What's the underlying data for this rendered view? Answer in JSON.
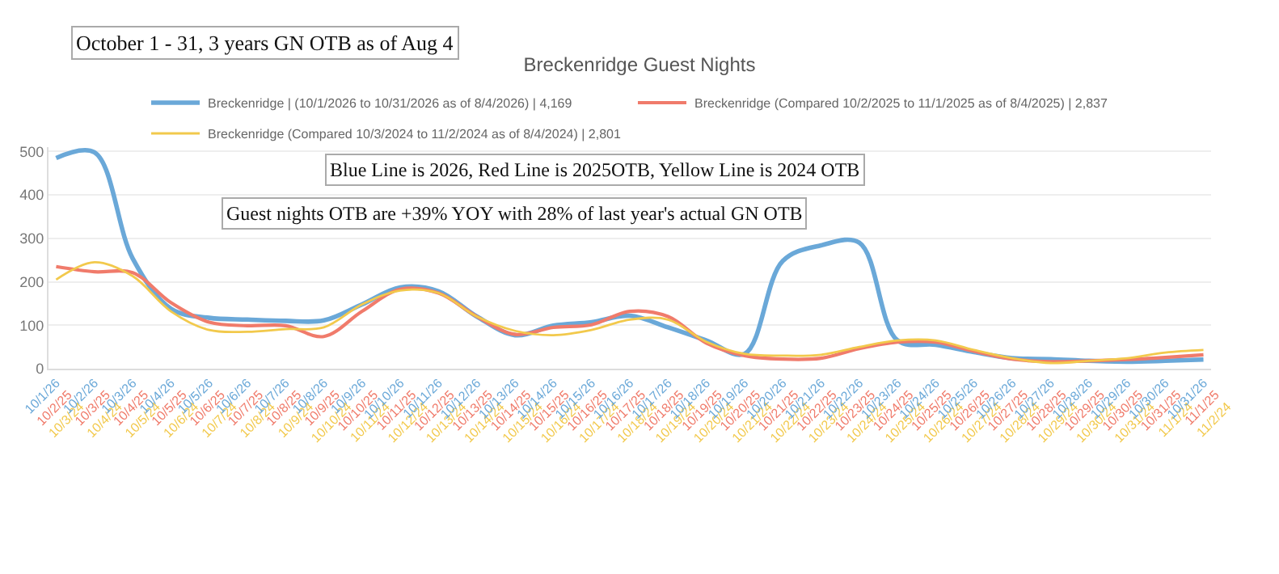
{
  "chart_data": {
    "type": "line",
    "title": "Breckenridge Guest Nights",
    "annotations": [
      "October 1 - 31, 3 years GN OTB as of Aug 4",
      "Blue Line is 2026, Red Line is 2025OTB, Yellow Line is 2024 OTB",
      "Guest nights OTB are +39% YOY with 28% of last year's actual GN OTB"
    ],
    "categories": [
      "10/1/26\n10/2/25\n10/3/24",
      "10/2/26\n10/3/25\n10/4/24",
      "10/3/26\n10/4/25\n10/5/24",
      "10/4/26\n10/5/25\n10/6/24",
      "10/5/26\n10/6/25\n10/7/24",
      "10/6/26\n10/7/25\n10/8/24",
      "10/7/26\n10/8/25\n10/9/24",
      "10/8/26\n10/9/25\n10/10/24",
      "10/9/26\n10/10/25\n10/11/24",
      "10/10/26\n10/11/25\n10/12/24",
      "10/11/26\n10/12/25\n10/13/24",
      "10/12/26\n10/13/25\n10/14/24",
      "10/13/26\n10/14/25\n10/15/24",
      "10/14/26\n10/15/25\n10/16/24",
      "10/15/26\n10/16/25\n10/17/24",
      "10/16/26\n10/17/25\n10/18/24",
      "10/17/26\n10/18/25\n10/19/24",
      "10/18/26\n10/19/25\n10/20/24",
      "10/19/26\n10/20/25\n10/21/24",
      "10/20/26\n10/21/25\n10/22/24",
      "10/21/26\n10/22/25\n10/23/24",
      "10/22/26\n10/23/25\n10/24/24",
      "10/23/26\n10/24/25\n10/25/24",
      "10/24/26\n10/25/25\n10/26/24",
      "10/25/26\n10/26/25\n10/27/24",
      "10/26/26\n10/27/25\n10/28/24",
      "10/27/26\n10/28/25\n10/29/24",
      "10/28/26\n10/29/25\n10/30/24",
      "10/29/26\n10/30/25\n10/31/24",
      "10/30/26\n10/31/25\n11/1/24",
      "10/31/26\n11/1/25\n11/2/24"
    ],
    "series": [
      {
        "name": "Breckenridge | (10/1/2026 to 10/31/2026 as of 8/4/2026) | 4,169",
        "color": "#6aa8d8",
        "values": [
          485,
          498,
          254,
          138,
          117,
          113,
          110,
          111,
          148,
          187,
          178,
          120,
          77,
          99,
          107,
          122,
          95,
          65,
          34,
          248,
          284,
          290,
          65,
          55,
          38,
          24,
          22,
          18,
          16,
          18,
          21
        ]
      },
      {
        "name": "Breckenridge (Compared 10/2/2025 to 11/1/2025 as of 8/4/2025) | 2,837",
        "color": "#f07b6b",
        "values": [
          235,
          223,
          221,
          152,
          107,
          99,
          99,
          74,
          132,
          183,
          174,
          120,
          79,
          95,
          101,
          132,
          120,
          59,
          30,
          22,
          24,
          46,
          61,
          61,
          40,
          22,
          16,
          18,
          21,
          26,
          32
        ]
      },
      {
        "name": "Breckenridge (Compared 10/3/2024 to 11/2/2024 as of 8/4/2024) | 2,801",
        "color": "#f2c94c",
        "values": [
          205,
          245,
          213,
          132,
          89,
          85,
          91,
          95,
          148,
          180,
          174,
          120,
          87,
          77,
          89,
          113,
          113,
          62,
          34,
          30,
          32,
          50,
          65,
          65,
          43,
          24,
          13,
          18,
          24,
          37,
          43
        ]
      }
    ],
    "ylim": [
      0,
      510
    ],
    "yticks": [
      0,
      100,
      200,
      300,
      400,
      500
    ],
    "grid": "y",
    "legend": "top"
  }
}
